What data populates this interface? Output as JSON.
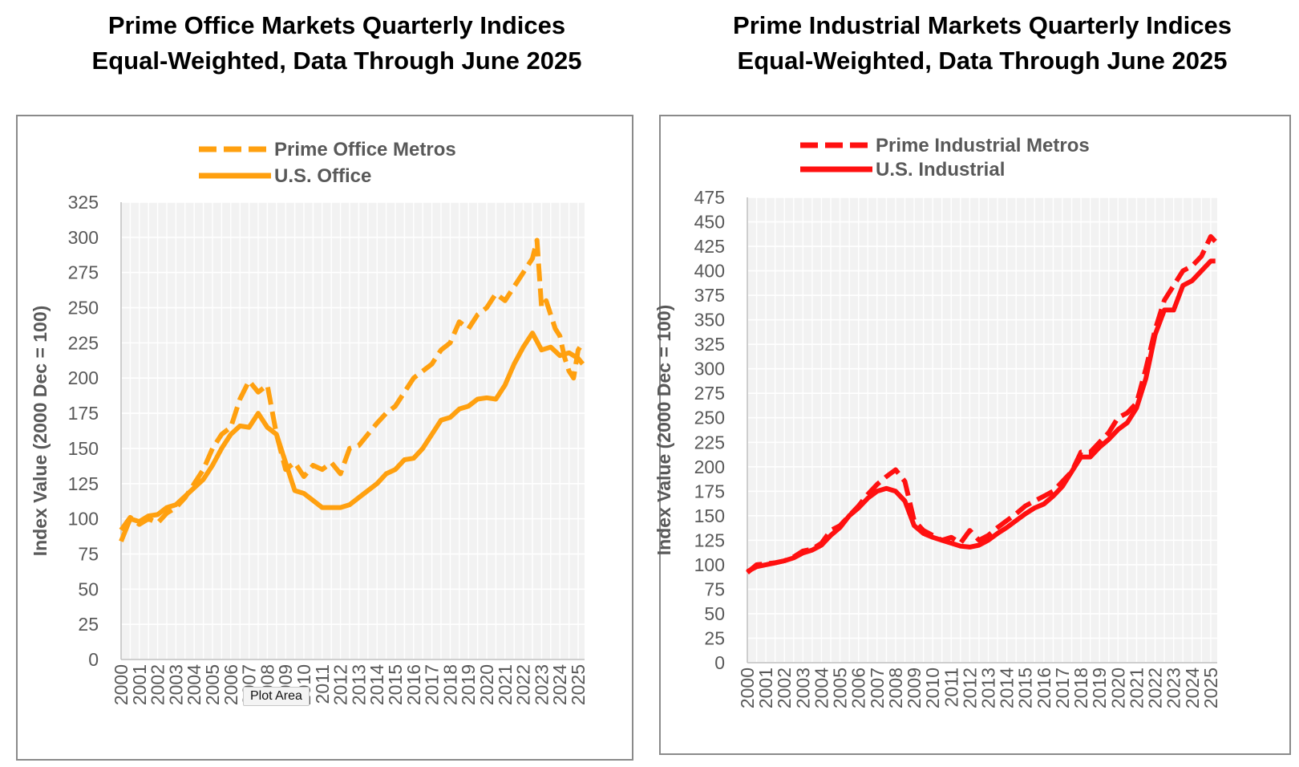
{
  "tooltip": "Plot Area",
  "colors": {
    "office": "#FFA00F",
    "industrial": "#FF1010",
    "plot_bg": "#F2F2F2",
    "grid": "#FFFFFF",
    "text": "#595959"
  },
  "chart_data": [
    {
      "type": "line",
      "title": [
        "Prime Office Markets Quarterly Indices",
        "Equal-Weighted, Data Through June 2025"
      ],
      "ylabel": "Index Value (2000 Dec = 100)",
      "xlabel": "",
      "ylim": [
        0,
        325
      ],
      "yticks": [
        0,
        25,
        50,
        75,
        100,
        125,
        150,
        175,
        200,
        225,
        250,
        275,
        300,
        325
      ],
      "x_tick_labels": [
        "2000",
        "2001",
        "2002",
        "2003",
        "2004",
        "2005",
        "2006",
        "2007",
        "2008",
        "2009",
        "2010",
        "2011",
        "2012",
        "2013",
        "2014",
        "2015",
        "2016",
        "2017",
        "2018",
        "2019",
        "2020",
        "2021",
        "2022",
        "2023",
        "2024",
        "2025"
      ],
      "grid": true,
      "legend": "top-center",
      "series": [
        {
          "name": "Prime Office Metros",
          "dash": "dashed",
          "x": [
            2000.0,
            2000.5,
            2001.0,
            2001.5,
            2002.0,
            2002.5,
            2003.0,
            2003.5,
            2004.0,
            2004.5,
            2005.0,
            2005.5,
            2006.0,
            2006.5,
            2007.0,
            2007.5,
            2008.0,
            2008.5,
            2009.0,
            2009.5,
            2010.0,
            2010.5,
            2011.0,
            2011.5,
            2012.0,
            2012.5,
            2013.0,
            2013.5,
            2014.0,
            2014.5,
            2015.0,
            2015.5,
            2016.0,
            2016.5,
            2017.0,
            2017.5,
            2018.0,
            2018.5,
            2019.0,
            2019.5,
            2020.0,
            2020.5,
            2021.0,
            2021.5,
            2022.0,
            2022.25,
            2022.5,
            2022.75,
            2023.0,
            2023.25,
            2023.5,
            2023.75,
            2024.0,
            2024.25,
            2024.5,
            2024.75,
            2025.0,
            2025.25
          ],
          "values": [
            92,
            101,
            96,
            100,
            97,
            104,
            108,
            115,
            125,
            135,
            150,
            160,
            165,
            185,
            198,
            190,
            195,
            160,
            135,
            140,
            130,
            138,
            135,
            140,
            132,
            150,
            152,
            160,
            168,
            175,
            180,
            190,
            200,
            205,
            210,
            220,
            225,
            240,
            235,
            245,
            250,
            260,
            255,
            265,
            275,
            280,
            285,
            298,
            250,
            255,
            245,
            235,
            230,
            215,
            205,
            200,
            220,
            225
          ]
        },
        {
          "name": "U.S. Office",
          "dash": "solid",
          "x": [
            2000.0,
            2000.5,
            2001.0,
            2001.5,
            2002.0,
            2002.5,
            2003.0,
            2003.5,
            2004.0,
            2004.5,
            2005.0,
            2005.5,
            2006.0,
            2006.5,
            2007.0,
            2007.5,
            2008.0,
            2008.5,
            2009.0,
            2009.5,
            2010.0,
            2010.5,
            2011.0,
            2011.5,
            2012.0,
            2012.5,
            2013.0,
            2013.5,
            2014.0,
            2014.5,
            2015.0,
            2015.5,
            2016.0,
            2016.5,
            2017.0,
            2017.5,
            2018.0,
            2018.5,
            2019.0,
            2019.5,
            2020.0,
            2020.5,
            2021.0,
            2021.5,
            2022.0,
            2022.5,
            2023.0,
            2023.5,
            2024.0,
            2024.5,
            2025.0,
            2025.25
          ],
          "values": [
            84,
            100,
            98,
            102,
            103,
            108,
            110,
            116,
            122,
            128,
            138,
            150,
            160,
            166,
            165,
            175,
            165,
            160,
            140,
            120,
            118,
            113,
            108,
            108,
            108,
            110,
            115,
            120,
            125,
            132,
            135,
            142,
            143,
            150,
            160,
            170,
            172,
            178,
            180,
            185,
            186,
            185,
            195,
            210,
            222,
            232,
            220,
            222,
            216,
            218,
            214,
            210
          ]
        }
      ]
    },
    {
      "type": "line",
      "title": [
        "Prime Industrial Markets Quarterly Indices",
        "Equal-Weighted, Data Through June 2025"
      ],
      "ylabel": "Index Value (2000 Dec = 100)",
      "xlabel": "",
      "ylim": [
        0,
        475
      ],
      "yticks": [
        0,
        25,
        50,
        75,
        100,
        125,
        150,
        175,
        200,
        225,
        250,
        275,
        300,
        325,
        350,
        375,
        400,
        425,
        450,
        475
      ],
      "x_tick_labels": [
        "2000",
        "2001",
        "2002",
        "2003",
        "2004",
        "2005",
        "2006",
        "2007",
        "2008",
        "2009",
        "2010",
        "2011",
        "2012",
        "2013",
        "2014",
        "2015",
        "2016",
        "2017",
        "2018",
        "2019",
        "2020",
        "2021",
        "2022",
        "2023",
        "2024",
        "2025"
      ],
      "grid": true,
      "legend": "top-center",
      "series": [
        {
          "name": "Prime Industrial Metros",
          "dash": "dashed",
          "x": [
            2000.0,
            2000.5,
            2001.0,
            2001.5,
            2002.0,
            2002.5,
            2003.0,
            2003.5,
            2004.0,
            2004.5,
            2005.0,
            2005.5,
            2006.0,
            2006.5,
            2007.0,
            2007.5,
            2008.0,
            2008.5,
            2009.0,
            2009.5,
            2010.0,
            2010.5,
            2011.0,
            2011.5,
            2012.0,
            2012.5,
            2013.0,
            2013.5,
            2014.0,
            2014.5,
            2015.0,
            2015.5,
            2016.0,
            2016.5,
            2017.0,
            2017.5,
            2018.0,
            2018.5,
            2019.0,
            2019.5,
            2020.0,
            2020.5,
            2021.0,
            2021.5,
            2022.0,
            2022.5,
            2023.0,
            2023.5,
            2024.0,
            2024.5,
            2025.0,
            2025.25
          ],
          "values": [
            92,
            100,
            101,
            102,
            104,
            108,
            114,
            116,
            122,
            135,
            140,
            150,
            160,
            172,
            182,
            190,
            197,
            185,
            145,
            135,
            130,
            125,
            128,
            122,
            135,
            125,
            130,
            138,
            145,
            152,
            160,
            165,
            170,
            175,
            185,
            195,
            215,
            215,
            225,
            235,
            250,
            255,
            265,
            300,
            340,
            370,
            385,
            400,
            405,
            415,
            435,
            430
          ]
        },
        {
          "name": "U.S. Industrial",
          "dash": "solid",
          "x": [
            2000.0,
            2000.5,
            2001.0,
            2001.5,
            2002.0,
            2002.5,
            2003.0,
            2003.5,
            2004.0,
            2004.5,
            2005.0,
            2005.5,
            2006.0,
            2006.5,
            2007.0,
            2007.5,
            2008.0,
            2008.5,
            2009.0,
            2009.5,
            2010.0,
            2010.5,
            2011.0,
            2011.5,
            2012.0,
            2012.5,
            2013.0,
            2013.5,
            2014.0,
            2014.5,
            2015.0,
            2015.5,
            2016.0,
            2016.5,
            2017.0,
            2017.5,
            2018.0,
            2018.5,
            2019.0,
            2019.5,
            2020.0,
            2020.5,
            2021.0,
            2021.5,
            2022.0,
            2022.5,
            2023.0,
            2023.5,
            2024.0,
            2024.5,
            2025.0,
            2025.25
          ],
          "values": [
            93,
            98,
            100,
            102,
            104,
            107,
            112,
            115,
            120,
            130,
            138,
            150,
            158,
            168,
            175,
            178,
            175,
            165,
            140,
            132,
            128,
            125,
            122,
            119,
            118,
            120,
            125,
            132,
            138,
            145,
            152,
            158,
            162,
            170,
            180,
            195,
            210,
            210,
            220,
            228,
            238,
            245,
            260,
            290,
            335,
            360,
            360,
            385,
            390,
            400,
            410,
            410
          ]
        }
      ]
    }
  ]
}
